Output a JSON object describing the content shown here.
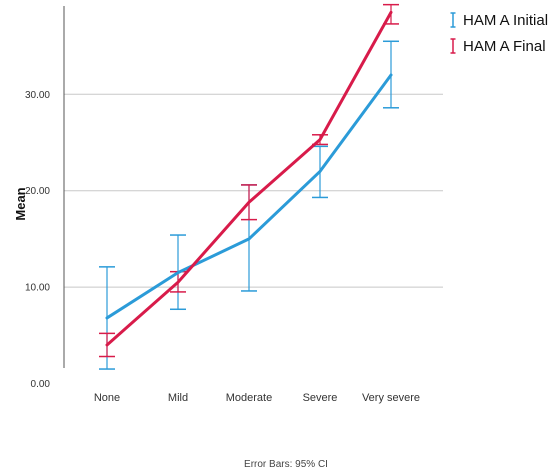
{
  "chart_data": {
    "type": "line",
    "title": "",
    "xlabel": "",
    "ylabel": "Mean",
    "categories": [
      "None",
      "Mild",
      "Moderate",
      "Severe",
      "Very severe"
    ],
    "ylim": [
      0,
      39
    ],
    "yticks": [
      {
        "value": 0,
        "label": "0.00"
      },
      {
        "value": 10,
        "label": "10.00"
      },
      {
        "value": 20,
        "label": "20.00"
      },
      {
        "value": 30,
        "label": "30.00"
      }
    ],
    "grid": "horizontal",
    "legend_position": "top-right",
    "series": [
      {
        "name": "HAM A Initial",
        "color": "#2b9bd8",
        "values": [
          6.8,
          11.5,
          15.0,
          22.0,
          32.0
        ],
        "ci_low": [
          1.5,
          7.7,
          9.6,
          19.3,
          28.6
        ],
        "ci_high": [
          12.1,
          15.4,
          20.6,
          24.6,
          35.5
        ]
      },
      {
        "name": "HAM A Final",
        "color": "#d81b4a",
        "values": [
          4.0,
          10.5,
          18.8,
          25.3,
          38.5
        ],
        "ci_low": [
          2.8,
          9.5,
          17.0,
          24.8,
          37.3
        ],
        "ci_high": [
          5.2,
          11.6,
          20.6,
          25.8,
          39.6
        ]
      }
    ],
    "footnote": "Error Bars: 95% CI"
  }
}
